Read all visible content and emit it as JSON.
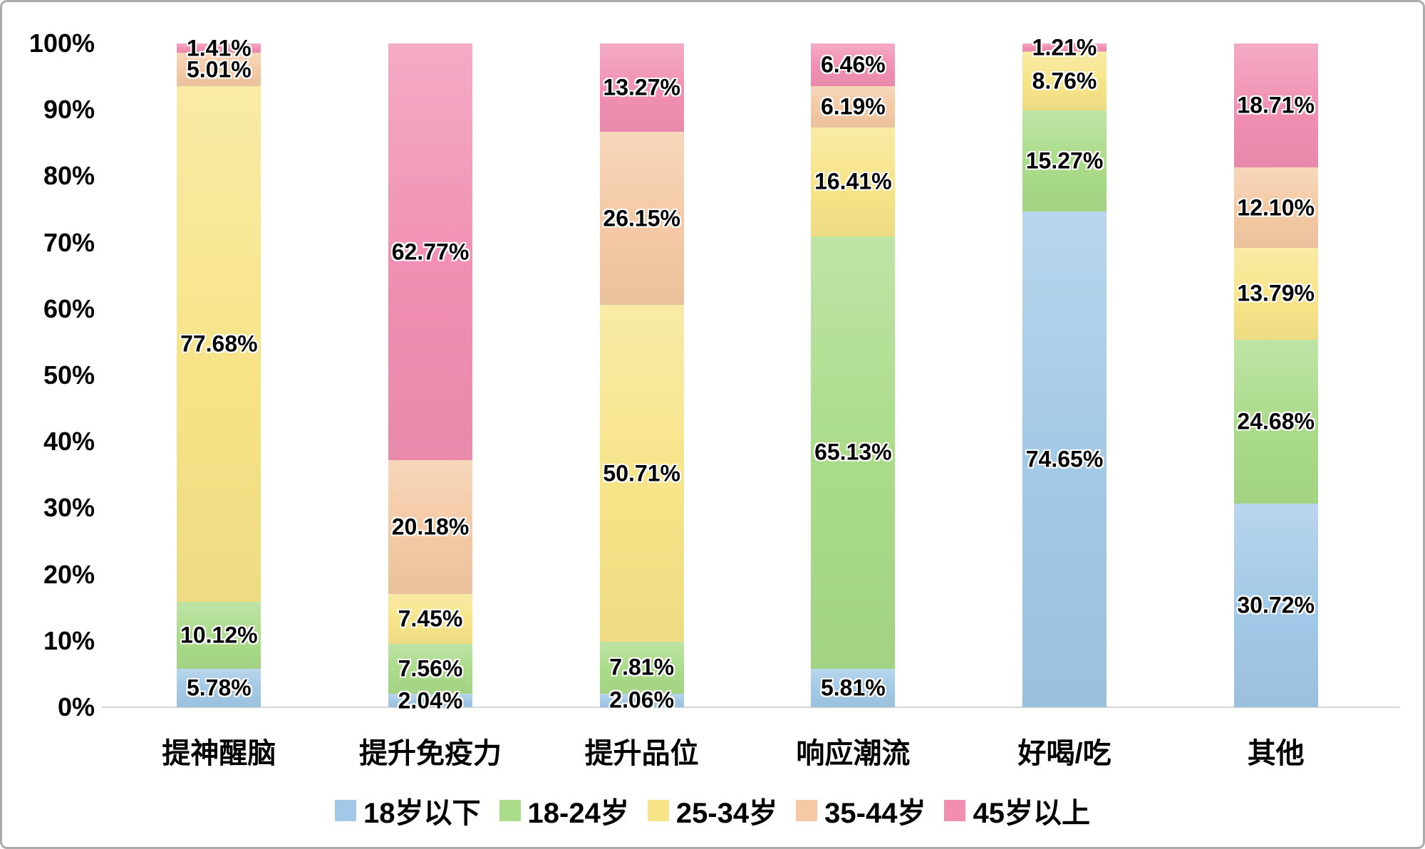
{
  "chart_data": {
    "type": "bar",
    "stacked": true,
    "percent_stacked": true,
    "title": "",
    "xlabel": "",
    "ylabel": "",
    "grid": false,
    "legend_position": "bottom",
    "label_min_value_for_display": 0.5,
    "categories": [
      "提神醒脑",
      "提升免疫力",
      "提升品位",
      "响应潮流",
      "好喝/吃",
      "其他"
    ],
    "series": [
      {
        "name": "18岁以下",
        "color": "#A1C8E6",
        "values": [
          5.78,
          2.04,
          2.06,
          5.81,
          74.65,
          30.72
        ]
      },
      {
        "name": "18-24岁",
        "color": "#A9DB88",
        "values": [
          10.12,
          7.56,
          7.81,
          65.13,
          15.27,
          24.68
        ]
      },
      {
        "name": "25-34岁",
        "color": "#F7E488",
        "values": [
          77.68,
          7.45,
          50.71,
          16.41,
          8.76,
          13.79
        ]
      },
      {
        "name": "35-44岁",
        "color": "#F4C9A4",
        "values": [
          5.01,
          20.18,
          26.15,
          6.19,
          0.11,
          12.1
        ]
      },
      {
        "name": "45岁以上",
        "color": "#F18FB3",
        "values": [
          1.41,
          62.77,
          13.27,
          6.46,
          1.21,
          18.71
        ]
      }
    ],
    "y_axis": {
      "min": 0,
      "max": 100,
      "step": 10,
      "tick_labels": [
        "0%",
        "10%",
        "20%",
        "30%",
        "40%",
        "50%",
        "60%",
        "70%",
        "80%",
        "90%",
        "100%"
      ]
    },
    "data_label_suffix": "%"
  },
  "colors": {
    "axis_line": "#D6D6D6",
    "text": "#000000",
    "frame_border": "#ABABAB",
    "background": "#FFFFFF"
  }
}
